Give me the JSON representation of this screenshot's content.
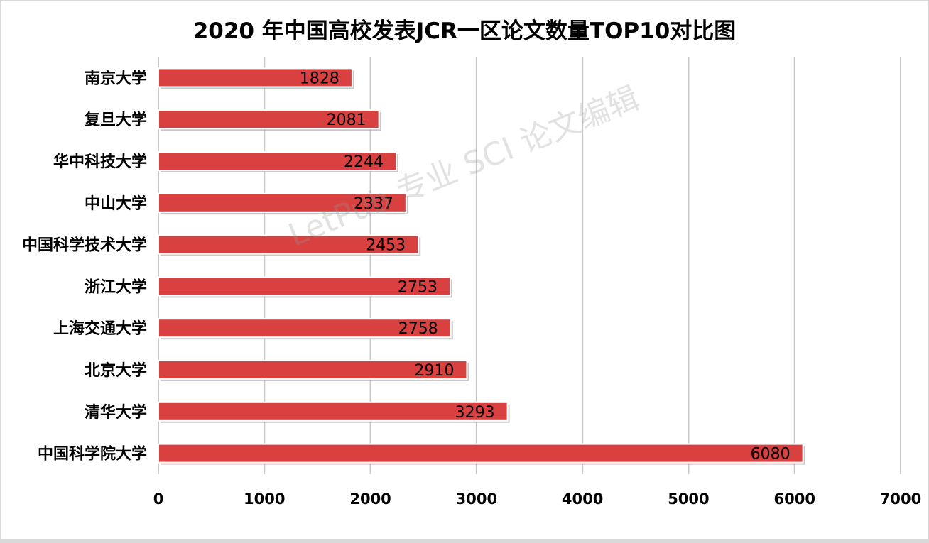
{
  "chart_data": {
    "type": "bar",
    "orientation": "horizontal",
    "title": "2020 年中国高校发表JCR一区论文数量TOP10对比图",
    "categories": [
      "南京大学",
      "复旦大学",
      "华中科技大学",
      "中山大学",
      "中国科学技术大学",
      "浙江大学",
      "上海交通大学",
      "北京大学",
      "清华大学",
      "中国科学院大学"
    ],
    "values": [
      1828,
      2081,
      2244,
      2337,
      2453,
      2753,
      2758,
      2910,
      3293,
      6080
    ],
    "xlim": [
      0,
      7000
    ],
    "xticks": [
      0,
      1000,
      2000,
      3000,
      4000,
      5000,
      6000,
      7000
    ],
    "grid": true,
    "bar_color": "#d94040",
    "legend": "none"
  },
  "watermark": "LetPub 专业 SCI 论文编辑"
}
